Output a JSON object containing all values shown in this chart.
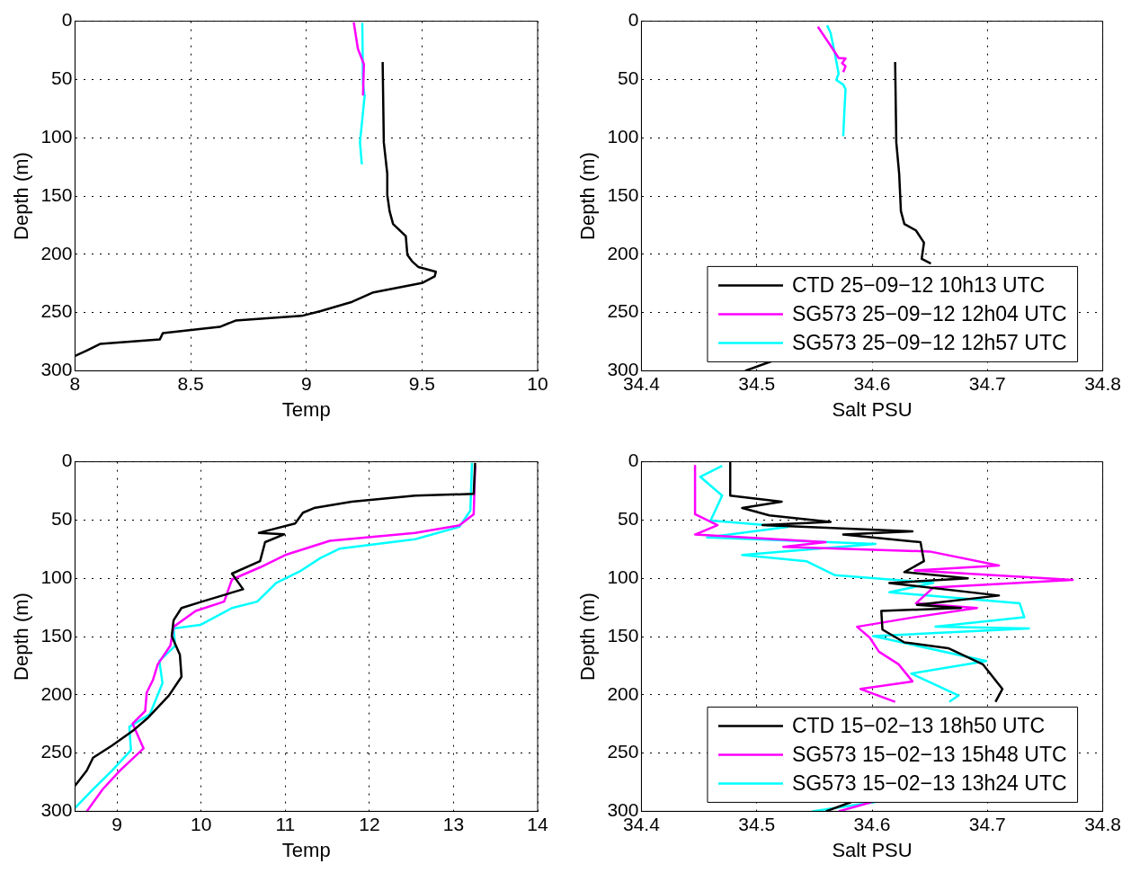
{
  "chart_data": [
    {
      "type": "line",
      "xlabel": "Temp",
      "ylabel": "Depth (m)",
      "xlim": [
        8,
        10
      ],
      "xticks": [
        8,
        8.5,
        9,
        9.5,
        10
      ],
      "ylim": [
        300,
        0
      ],
      "yticks": [
        0,
        50,
        100,
        150,
        200,
        250,
        300
      ],
      "grid": true,
      "line_style": "solid",
      "marker": "none",
      "series": [
        {
          "color": "#000000",
          "x": [
            9.33,
            9.335,
            9.35,
            9.35,
            9.36,
            9.375,
            9.43,
            9.437,
            9.457,
            9.485,
            9.56,
            9.555,
            9.5,
            9.29,
            9.198,
            9.062,
            8.98,
            8.694,
            8.626,
            8.38,
            8.367,
            8.108,
            8.053,
            8.0
          ],
          "values": [
            35,
            104,
            131,
            149,
            163,
            174,
            184.5,
            200.6,
            206,
            211,
            215,
            219,
            224.7,
            232.7,
            240.8,
            248.8,
            252.9,
            256.9,
            262.3,
            267.6,
            273,
            277,
            282.4,
            287.2
          ]
        },
        {
          "color": "#ff00ff",
          "x": [
            9.205,
            9.223,
            9.249,
            9.245
          ],
          "values": [
            1,
            23.6,
            37,
            63.8
          ]
        },
        {
          "color": "#00ffff",
          "x": [
            9.242,
            9.245,
            9.252,
            9.232,
            9.24
          ],
          "values": [
            1.5,
            53.6,
            64,
            104,
            122.8
          ]
        }
      ]
    },
    {
      "type": "line",
      "xlabel": "Salt PSU",
      "ylabel": "Depth (m)",
      "xlim": [
        34.4,
        34.8
      ],
      "xticks": [
        34.4,
        34.5,
        34.6,
        34.7,
        34.8
      ],
      "ylim": [
        300,
        0
      ],
      "yticks": [
        0,
        50,
        100,
        150,
        200,
        250,
        300
      ],
      "grid": true,
      "legend": "bottom right",
      "line_style": "solid",
      "marker": "none",
      "series": [
        {
          "name": "CTD 25−09−12 10h13 UTC",
          "color": "#000000",
          "x": [
            34.62,
            34.621,
            34.6235,
            34.625,
            34.628,
            34.638,
            34.645,
            34.643,
            34.651,
            null,
            34.513,
            34.49
          ],
          "values": [
            35,
            104,
            131,
            163,
            174,
            179.5,
            190,
            204,
            208,
            null,
            291.8,
            300
          ]
        },
        {
          "name": "SG573 25−09−12 12h04 UTC",
          "color": "#ff00ff",
          "x": [
            34.553,
            34.564,
            34.571,
            34.577,
            34.574,
            34.577,
            34.575
          ],
          "values": [
            4.8,
            21,
            31.6,
            32,
            36,
            38.6,
            43.7
          ]
        },
        {
          "name": "SG573 25−09−12 12h57 UTC",
          "color": "#00ffff",
          "x": [
            34.561,
            34.564,
            34.568,
            34.571,
            34.569,
            34.575,
            34.577,
            34.576,
            34.575
          ],
          "values": [
            3.5,
            10,
            29,
            45,
            50.4,
            54.4,
            58.4,
            77,
            98.7
          ]
        }
      ]
    },
    {
      "type": "line",
      "xlabel": "Temp",
      "ylabel": "Depth (m)",
      "xlim": [
        8.5,
        14
      ],
      "xticks": [
        9,
        10,
        11,
        12,
        13,
        14
      ],
      "ylim": [
        300,
        0
      ],
      "yticks": [
        0,
        50,
        100,
        150,
        200,
        250,
        300
      ],
      "grid": true,
      "line_style": "solid",
      "marker": "none",
      "series": [
        {
          "color": "#000000",
          "x": [
            13.257,
            13.24,
            12.544,
            11.79,
            11.342,
            11.21,
            11.117,
            10.686,
            10.985,
            10.76,
            10.7,
            10.366,
            10.498,
            10.01,
            9.766,
            9.672,
            9.65,
            9.747,
            9.766,
            9.616,
            9.372,
            9.203,
            8.94,
            8.715,
            8.64,
            8.5
          ],
          "values": [
            1,
            27.6,
            29,
            34.3,
            39.7,
            43.7,
            53,
            61,
            62.3,
            69,
            85.3,
            96,
            109.4,
            120,
            125.5,
            136,
            149.6,
            165.7,
            184.5,
            200.6,
            219.4,
            230,
            243.5,
            254,
            265,
            278
          ]
        },
        {
          "color": "#ff00ff",
          "x": [
            13.257,
            13.24,
            13.07,
            12.544,
            11.53,
            11.0,
            10.7,
            10.366,
            10.273,
            9.935,
            9.672,
            9.634,
            9.484,
            9.428,
            9.353,
            9.334,
            9.184,
            9.315,
            9.034,
            8.83,
            8.64
          ],
          "values": [
            3.5,
            45,
            54.5,
            61,
            67.8,
            80,
            90.6,
            101,
            120,
            128,
            141.6,
            157.7,
            173.8,
            187,
            198,
            214,
            224.7,
            246,
            265,
            281,
            300
          ]
        },
        {
          "color": "#00ffff",
          "x": [
            13.22,
            13.2,
            13.07,
            12.544,
            11.643,
            11.418,
            11.19,
            10.892,
            10.667,
            10.366,
            9.99,
            9.672,
            9.69,
            9.503,
            9.54,
            9.39,
            9.146,
            9.165,
            8.94,
            8.715,
            8.5
          ],
          "values": [
            1,
            42,
            55.8,
            66.5,
            74.6,
            82.6,
            93.3,
            104,
            120,
            125.5,
            140,
            143,
            158,
            171,
            190,
            216.7,
            227.4,
            247.5,
            265,
            281,
            297
          ]
        }
      ]
    },
    {
      "type": "line",
      "xlabel": "Salt PSU",
      "ylabel": "Depth (m)",
      "xlim": [
        34.4,
        34.8
      ],
      "xticks": [
        34.4,
        34.5,
        34.6,
        34.7,
        34.8
      ],
      "ylim": [
        300,
        0
      ],
      "yticks": [
        0,
        50,
        100,
        150,
        200,
        250,
        300
      ],
      "grid": true,
      "legend": "bottom right",
      "line_style": "solid",
      "marker": "none",
      "series": [
        {
          "name": "CTD 15−02−13 18h50 UTC",
          "color": "#000000",
          "x": [
            34.477,
            34.477,
            34.5216,
            34.4874,
            34.511,
            34.564,
            34.505,
            34.635,
            34.575,
            34.642,
            34.645,
            34.628,
            34.683,
            34.615,
            34.71,
            34.639,
            34.677,
            34.608,
            34.609,
            34.628,
            34.666,
            34.696,
            34.713,
            34.707,
            null,
            34.582,
            34.56
          ],
          "values": [
            0.8,
            29,
            34.3,
            39.7,
            46,
            51.7,
            54.4,
            59.8,
            62.5,
            69,
            85.3,
            94.7,
            100,
            104,
            114.8,
            122.8,
            125.5,
            128,
            144,
            155,
            160,
            173.8,
            195,
            206,
            null,
            292,
            300
          ]
        },
        {
          "name": "SG573 15−02−13 15h48 UTC",
          "color": "#ff00ff",
          "x": [
            34.4465,
            34.4465,
            34.466,
            34.4465,
            34.5598,
            34.523,
            34.65,
            34.71,
            34.637,
            34.774,
            34.653,
            34.638,
            34.691,
            34.636,
            34.587,
            34.598,
            34.606,
            34.623,
            34.635,
            34.59,
            34.62,
            null,
            34.6,
            34.571
          ],
          "values": [
            3.5,
            45,
            54.4,
            62.5,
            69,
            73,
            77,
            89,
            93.3,
            101.4,
            108,
            121.5,
            125.5,
            133.5,
            141.6,
            151,
            163,
            173.8,
            188.5,
            195,
            206,
            null,
            292,
            300
          ]
        },
        {
          "name": "SG573 15−02−13 13h24 UTC",
          "color": "#00ffff",
          "x": [
            34.47,
            34.451,
            34.47,
            34.46,
            34.527,
            34.457,
            34.603,
            34.4874,
            34.543,
            34.568,
            34.653,
            34.615,
            34.728,
            34.732,
            34.655,
            34.736,
            34.601,
            34.699,
            34.634,
            34.675,
            34.667,
            null,
            34.603,
            34.548
          ],
          "values": [
            3.5,
            12.9,
            29,
            50.4,
            55.8,
            65,
            70.5,
            80,
            85.3,
            97.4,
            104,
            112,
            121.5,
            133.5,
            141.6,
            143,
            149.6,
            171,
            181.8,
            200.6,
            206,
            null,
            292,
            300
          ]
        }
      ]
    }
  ]
}
